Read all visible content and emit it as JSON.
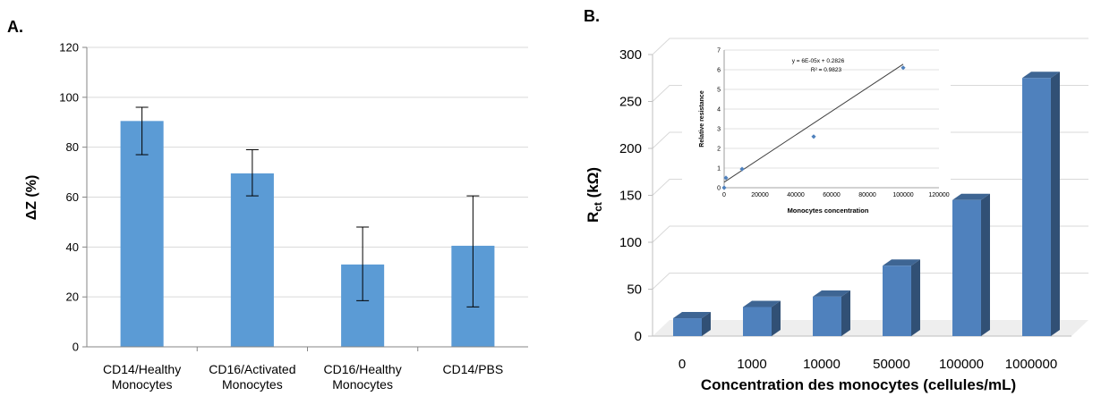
{
  "chart_data": [
    {
      "panel_label": "A.",
      "type": "bar",
      "categories": [
        [
          "CD14/Healthy",
          "Monocytes"
        ],
        [
          "CD16/Activated",
          "Monocytes"
        ],
        [
          "CD16/Healthy",
          "Monocytes"
        ],
        [
          "CD14/PBS"
        ]
      ],
      "values": [
        90.5,
        69.5,
        33,
        40.5
      ],
      "error_low": [
        77,
        60.5,
        18.5,
        16
      ],
      "error_high": [
        96,
        79,
        48,
        60.5
      ],
      "ylabel": "ΔZ (%)",
      "ylim": [
        0,
        120
      ],
      "yticks": [
        0,
        20,
        40,
        60,
        80,
        100,
        120
      ],
      "grid": true,
      "bar_color": "#5b9bd5"
    },
    {
      "panel_label": "B.",
      "type": "bar",
      "style": "3d",
      "categories": [
        "0",
        "1000",
        "10000",
        "50000",
        "100000",
        "1000000"
      ],
      "values": [
        19,
        31,
        42,
        75,
        145,
        275
      ],
      "ylabel_main": "R",
      "ylabel_sub": "ct",
      "ylabel_unit": " (kΩ)",
      "xlabel": "Concentration des monocytes (cellules/mL)",
      "ylim": [
        0,
        300
      ],
      "yticks": [
        0,
        50,
        100,
        150,
        200,
        250,
        300
      ],
      "grid": true,
      "bar_color": "#4f81bd",
      "inset": {
        "type": "scatter",
        "x": [
          0,
          1000,
          10000,
          50000,
          100000
        ],
        "y": [
          0,
          0.5,
          0.95,
          2.6,
          6.1
        ],
        "xlim": [
          0,
          120000
        ],
        "ylim": [
          0,
          7
        ],
        "xticks": [
          0,
          20000,
          40000,
          60000,
          80000,
          100000,
          120000
        ],
        "yticks": [
          0,
          1,
          2,
          3,
          4,
          5,
          6,
          7
        ],
        "xlabel": "Monocytes concentration",
        "ylabel": "Relative resistance",
        "trendline": {
          "slope": 6e-05,
          "intercept": 0.2826
        },
        "equation": "y = 6E-05x + 0.2826",
        "r_squared": "R² = 0.9823",
        "marker_color": "#4f81bd"
      }
    }
  ]
}
